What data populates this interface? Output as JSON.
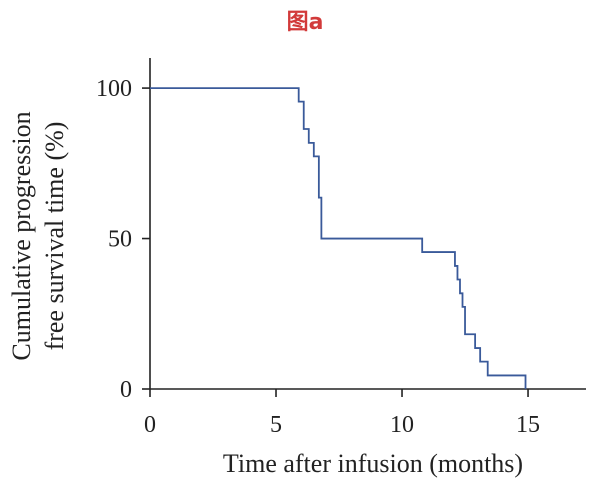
{
  "colors": {
    "title": "#d23a3a",
    "axis": "#222222",
    "curve": "#3a5a9a"
  },
  "chart_data": {
    "type": "line",
    "step": true,
    "title": "图a",
    "xlabel": "Time after infusion (months)",
    "ylabel_lines": [
      "Cumulative progression",
      "free survival time (%)"
    ],
    "xlim": [
      0,
      17.3
    ],
    "ylim": [
      0,
      110
    ],
    "xticks": [
      0,
      5,
      10,
      15
    ],
    "yticks": [
      0,
      50,
      100
    ],
    "series": [
      {
        "name": "Progression-free survival",
        "x": [
          0,
          5.9,
          6.1,
          6.3,
          6.5,
          6.7,
          6.8,
          10.8,
          12.1,
          12.2,
          12.3,
          12.4,
          12.5,
          12.9,
          13.1,
          13.4,
          14.9,
          14.9
        ],
        "y": [
          100,
          95.5,
          86.4,
          81.8,
          77.3,
          63.6,
          50,
          45.5,
          40.9,
          36.4,
          31.8,
          27.3,
          18.2,
          13.6,
          9.1,
          4.5,
          4.5,
          0
        ]
      }
    ]
  }
}
